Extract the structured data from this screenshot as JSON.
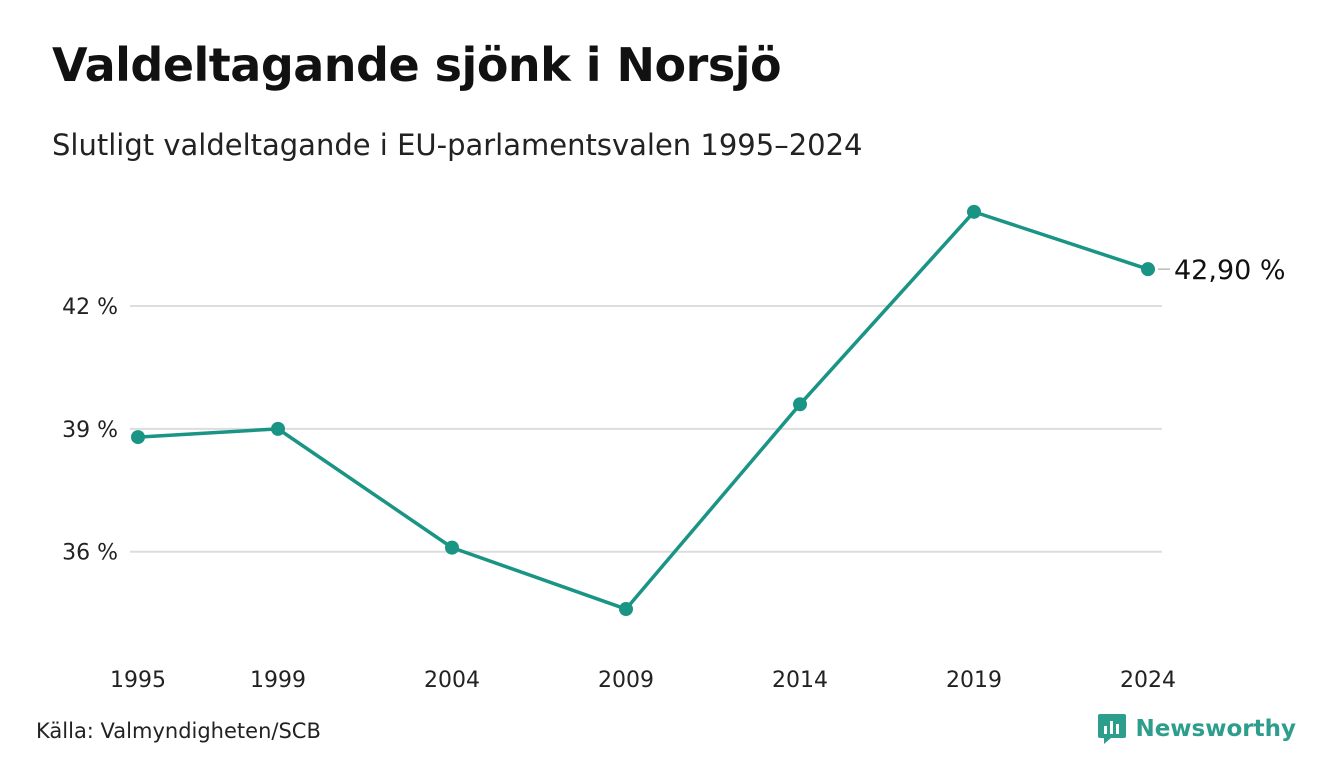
{
  "title": "Valdeltagande sjönk i Norsjö",
  "subtitle": "Slutligt valdeltagande i EU-parlamentsvalen 1995–2024",
  "source": "Källa: Valmyndigheten/SCB",
  "brand": {
    "name": "Newsworthy",
    "icon": "newsworthy-logo-icon",
    "color": "#2e9e8c"
  },
  "colors": {
    "line": "#1a9484",
    "grid": "#dddddd"
  },
  "chart_data": {
    "type": "line",
    "x": [
      "1995",
      "1999",
      "2004",
      "2009",
      "2014",
      "2019",
      "2024"
    ],
    "series": [
      {
        "values": [
          38.8,
          39.0,
          36.1,
          34.6,
          39.6,
          44.3,
          42.9
        ]
      }
    ],
    "yticks": [
      36,
      39,
      42
    ],
    "ytick_labels": [
      "36 %",
      "39 %",
      "42 %"
    ],
    "ylim": [
      33.6,
      45.2
    ],
    "end_label": "42,90 %",
    "xlabel": "",
    "ylabel": "",
    "grid": true
  }
}
